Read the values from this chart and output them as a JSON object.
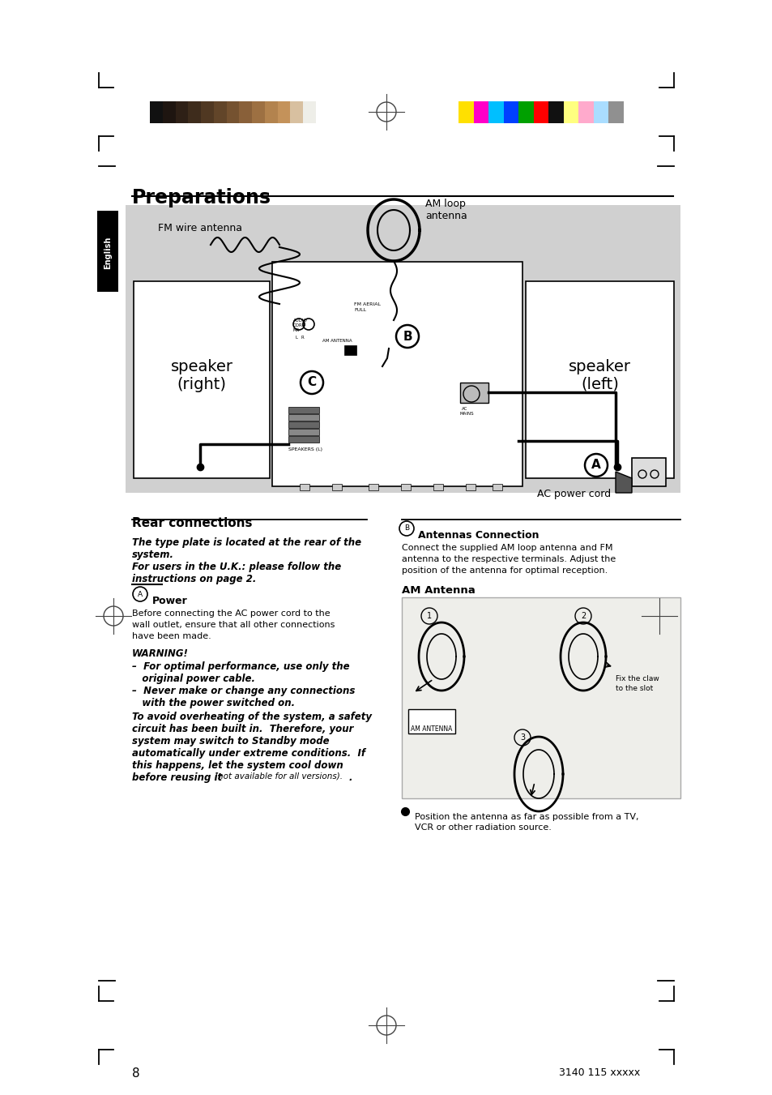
{
  "title": "Preparations",
  "bg_color": "#ffffff",
  "diagram_bg": "#d0d0d0",
  "speaker_right_text": "speaker\n(right)",
  "speaker_left_text": "speaker\n(left)",
  "fm_antenna_label": "FM wire antenna",
  "am_antenna_label": "AM loop\nantenna",
  "ac_power_cord_label": "AC power cord",
  "english_tab_text": "English",
  "rear_connections_text": "Rear connections",
  "power_label": "Power",
  "power_text1": "Before connecting the AC power cord to the\nwall outlet, ensure that all other connections\nhave been made.",
  "warning_text": "WARNING!",
  "type_plate_text_line1": "The type plate is located at the rear of the",
  "type_plate_text_line2": "system.",
  "type_plate_text_line3": "For users in the U.K.: please follow the",
  "type_plate_text_line4": "instructions on page 2.",
  "antennas_connection_text_line1": "Connect the supplied AM loop antenna and FM",
  "antennas_connection_text_line2": "antenna to the respective terminals. Adjust the",
  "antennas_connection_text_line3": "position of the antenna for optimal reception.",
  "am_antenna_section_title": "AM Antenna",
  "position_text_line1": "Position the antenna as far as possible from a TV,",
  "position_text_line2": "VCR or other radiation source.",
  "page_number": "8",
  "catalog_number": "3140 115 xxxxx",
  "color_bars_left": [
    "#111111",
    "#1e1510",
    "#2e2016",
    "#3e2c1c",
    "#503822",
    "#624529",
    "#755230",
    "#896039",
    "#9d7042",
    "#b3834e",
    "#c4925a",
    "#d8c0a0",
    "#eeeee8"
  ],
  "color_bars_right": [
    "#ffe000",
    "#ff00c8",
    "#00bfff",
    "#0040ff",
    "#00a000",
    "#ff0000",
    "#111111",
    "#ffff80",
    "#ffaacc",
    "#aaddff",
    "#909090"
  ]
}
